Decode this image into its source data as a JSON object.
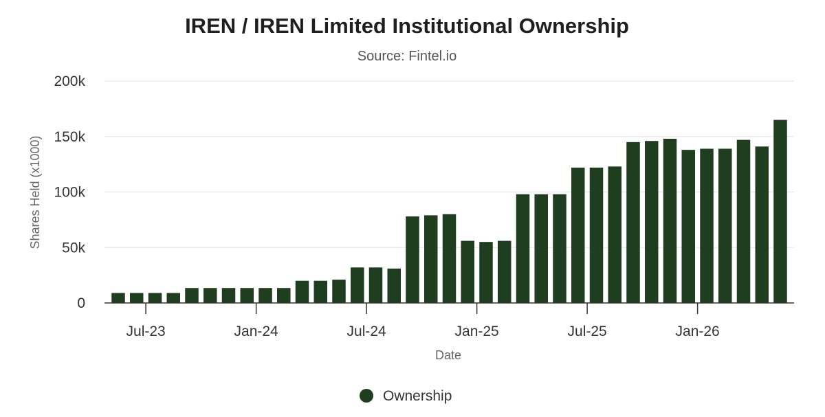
{
  "chart_data": {
    "type": "bar",
    "title": "IREN / IREN Limited Institutional Ownership",
    "subtitle": "Source: Fintel.io",
    "xlabel": "Date",
    "ylabel": "Shares Held (x1000)",
    "ylim": [
      0,
      200000
    ],
    "yticks": [
      0,
      50000,
      100000,
      150000,
      200000
    ],
    "ytick_labels": [
      "0",
      "50k",
      "100k",
      "150k",
      "200k"
    ],
    "xticks": [
      {
        "label": "Jul-23",
        "bar_index": 1
      },
      {
        "label": "Jan-24",
        "bar_index": 7
      },
      {
        "label": "Jul-24",
        "bar_index": 13
      },
      {
        "label": "Jan-25",
        "bar_index": 19
      },
      {
        "label": "Jul-25",
        "bar_index": 25
      },
      {
        "label": "Jan-26",
        "bar_index": 31
      }
    ],
    "grid": true,
    "legend_position": "bottom",
    "series": [
      {
        "name": "Ownership",
        "color": "#1f3d1f",
        "values": [
          9000,
          9000,
          9000,
          9000,
          13500,
          13500,
          13500,
          13500,
          13500,
          13500,
          20000,
          20000,
          21000,
          32000,
          32000,
          31000,
          78000,
          79000,
          80000,
          56000,
          55000,
          56000,
          98000,
          98000,
          98000,
          122000,
          122000,
          123000,
          145000,
          146000,
          148000,
          138000,
          139000,
          139000,
          147000,
          141000,
          165000
        ]
      }
    ]
  }
}
